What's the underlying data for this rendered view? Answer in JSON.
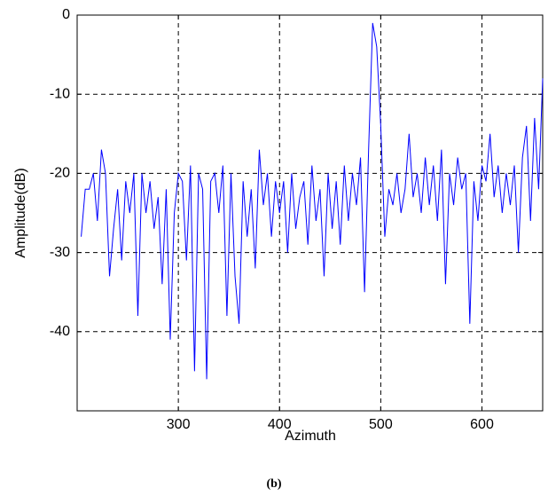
{
  "chart_data": {
    "type": "line",
    "xlabel": "Azimuth",
    "ylabel": "Amplitude(dB)",
    "caption": "(b)",
    "x": [
      204,
      208,
      212,
      216,
      220,
      224,
      228,
      232,
      236,
      240,
      244,
      248,
      252,
      256,
      260,
      264,
      268,
      272,
      276,
      280,
      284,
      288,
      292,
      296,
      300,
      304,
      308,
      312,
      316,
      320,
      324,
      328,
      332,
      336,
      340,
      344,
      348,
      352,
      356,
      360,
      364,
      368,
      372,
      376,
      380,
      384,
      388,
      392,
      396,
      400,
      404,
      408,
      412,
      416,
      420,
      424,
      428,
      432,
      436,
      440,
      444,
      448,
      452,
      456,
      460,
      464,
      468,
      472,
      476,
      480,
      484,
      488,
      492,
      496,
      500,
      504,
      508,
      512,
      516,
      520,
      524,
      528,
      532,
      536,
      540,
      544,
      548,
      552,
      556,
      560,
      564,
      568,
      572,
      576,
      580,
      584,
      588,
      592,
      596,
      600,
      604,
      608,
      612,
      616,
      620,
      624,
      628,
      632,
      636,
      640,
      644,
      648,
      652,
      656,
      660
    ],
    "series": [
      {
        "color": "#0000ff",
        "values": [
          -28,
          -22,
          -22,
          -20,
          -26,
          -17,
          -20,
          -33,
          -27,
          -22,
          -31,
          -21,
          -25,
          -20,
          -38,
          -20,
          -25,
          -21,
          -27,
          -23,
          -34,
          -22,
          -41,
          -25,
          -20,
          -21,
          -31,
          -19,
          -45,
          -20,
          -22,
          -46,
          -21,
          -20,
          -25,
          -19,
          -38,
          -20,
          -33,
          -39,
          -21,
          -28,
          -22,
          -32,
          -17,
          -24,
          -20,
          -28,
          -21,
          -25,
          -21,
          -30,
          -20,
          -27,
          -23,
          -21,
          -29,
          -19,
          -26,
          -22,
          -33,
          -20,
          -27,
          -21,
          -29,
          -19,
          -26,
          -20,
          -24,
          -18,
          -35,
          -17,
          -1,
          -4,
          -14,
          -28,
          -22,
          -24,
          -20,
          -25,
          -22,
          -15,
          -23,
          -20,
          -25,
          -18,
          -24,
          -19,
          -26,
          -17,
          -34,
          -20,
          -24,
          -18,
          -22,
          -20,
          -39,
          -21,
          -26,
          -19,
          -21,
          -15,
          -23,
          -19,
          -25,
          -20,
          -24,
          -19,
          -30,
          -18,
          -14,
          -26,
          -13,
          -22,
          -8
        ]
      }
    ],
    "xlim": [
      200,
      660
    ],
    "ylim": [
      -50,
      0
    ],
    "xticks": [
      300,
      400,
      500,
      600
    ],
    "yticks": [
      0,
      -10,
      -20,
      -30,
      -40
    ],
    "grid": true
  }
}
